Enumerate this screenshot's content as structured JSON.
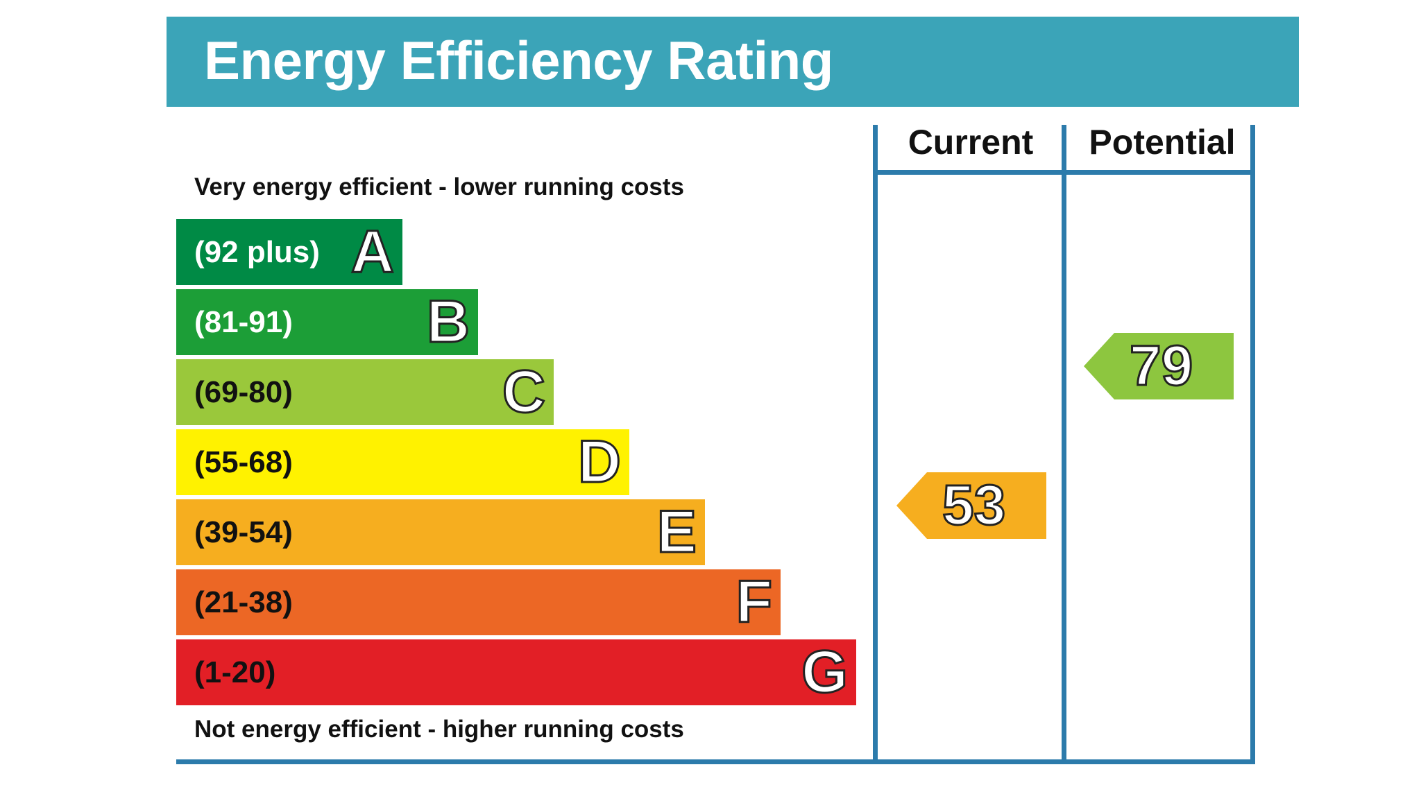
{
  "title": "Energy Efficiency Rating",
  "top_caption": "Very energy efficient - lower running costs",
  "bottom_caption": "Not energy efficient - higher running costs",
  "columns": {
    "current": "Current",
    "potential": "Potential"
  },
  "colors": {
    "header": "#3ba4b8",
    "frame": "#2c7bab"
  },
  "chart_data": {
    "type": "bar",
    "bands": [
      {
        "range": "(92 plus)",
        "letter": "A",
        "color": "#008a45",
        "text_color": "#ffffff"
      },
      {
        "range": "(81-91)",
        "letter": "B",
        "color": "#1c9e37",
        "text_color": "#ffffff"
      },
      {
        "range": "(69-80)",
        "letter": "C",
        "color": "#9ac83b",
        "text_color": "#111111"
      },
      {
        "range": "(55-68)",
        "letter": "D",
        "color": "#fff200",
        "text_color": "#111111"
      },
      {
        "range": "(39-54)",
        "letter": "E",
        "color": "#f6ae1f",
        "text_color": "#111111"
      },
      {
        "range": "(21-38)",
        "letter": "F",
        "color": "#ec6725",
        "text_color": "#111111"
      },
      {
        "range": "(1-20)",
        "letter": "G",
        "color": "#e21f26",
        "text_color": "#111111"
      }
    ],
    "current": {
      "value": 53,
      "band": "E",
      "color": "#f6ae1f"
    },
    "potential": {
      "value": 79,
      "band": "C",
      "color": "#8dc63f"
    }
  }
}
